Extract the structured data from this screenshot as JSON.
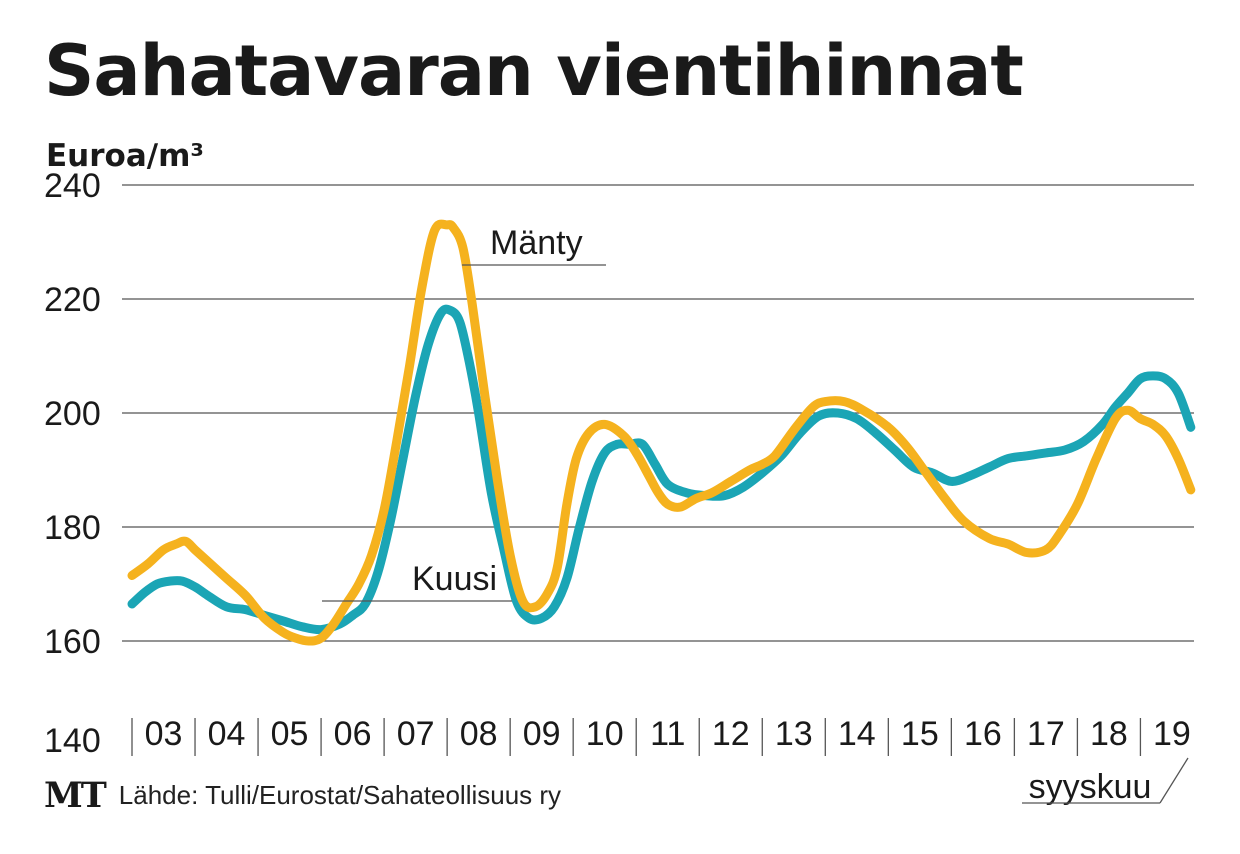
{
  "title": "Sahatavaran vientihinnat",
  "unit_label": "Euroa/m³",
  "source": "Lähde: Tulli/Eurostat/Sahateollisuus ry",
  "logo_text": "MT",
  "colors": {
    "manty": "#F5B21E",
    "kuusi": "#1BA5B5",
    "grid": "#555555",
    "text": "#1a1a1a"
  },
  "chart_data": {
    "type": "line",
    "title": "Sahatavaran vientihinnat",
    "ylabel": "Euroa/m³",
    "ylim": [
      140,
      240
    ],
    "yticks": [
      140,
      160,
      180,
      200,
      220,
      240
    ],
    "xlim": [
      0,
      16.85
    ],
    "categories": [
      "03",
      "04",
      "05",
      "06",
      "07",
      "08",
      "09",
      "10",
      "11",
      "12",
      "13",
      "14",
      "15",
      "16",
      "17",
      "18",
      "19"
    ],
    "x_end_label": "syyskuu",
    "grid": true,
    "legend": "inline labels",
    "series": [
      {
        "name": "Mänty",
        "label_anchor": [
          7.7,
          227
        ],
        "x": [
          0,
          0.25,
          0.5,
          0.7,
          0.85,
          1.0,
          1.2,
          1.5,
          1.8,
          2.1,
          2.4,
          2.6,
          2.8,
          3.0,
          3.2,
          3.4,
          3.6,
          3.8,
          4.0,
          4.2,
          4.4,
          4.6,
          4.8,
          5.0,
          5.1,
          5.25,
          5.4,
          5.6,
          5.8,
          6.0,
          6.2,
          6.4,
          6.6,
          6.75,
          6.9,
          7.05,
          7.25,
          7.5,
          7.8,
          8.0,
          8.2,
          8.35,
          8.5,
          8.7,
          8.95,
          9.2,
          9.5,
          9.8,
          10.0,
          10.2,
          10.5,
          10.8,
          11.0,
          11.3,
          11.6,
          12.0,
          12.3,
          12.6,
          12.9,
          13.2,
          13.6,
          13.9,
          14.2,
          14.5,
          14.7,
          15.0,
          15.3,
          15.6,
          15.8,
          16.0,
          16.2,
          16.4,
          16.6,
          16.8
        ],
        "values": [
          171.5,
          173.5,
          176,
          177,
          177.5,
          176,
          174,
          171,
          168,
          164,
          161.5,
          160.5,
          160,
          160.5,
          163,
          166.5,
          170,
          175,
          183,
          195,
          208,
          222,
          232,
          233,
          232.5,
          229,
          219,
          203,
          188,
          175,
          167,
          166,
          168.5,
          173,
          184,
          192,
          196.5,
          198,
          196,
          193,
          189,
          186,
          184,
          183.5,
          185,
          186,
          188,
          190,
          191,
          192.5,
          197,
          201,
          202,
          202,
          200.5,
          197.5,
          194,
          189.5,
          185,
          181,
          178,
          177,
          175.5,
          176,
          178.5,
          184,
          192,
          199,
          200.5,
          199,
          198,
          196,
          192,
          186.5
        ]
      },
      {
        "name": "Kuusi",
        "label_anchor": [
          7.6,
          174
        ],
        "x": [
          0,
          0.2,
          0.4,
          0.6,
          0.8,
          1.0,
          1.2,
          1.5,
          1.8,
          2.1,
          2.4,
          2.7,
          3.0,
          3.3,
          3.5,
          3.7,
          3.9,
          4.1,
          4.3,
          4.5,
          4.7,
          4.9,
          5.05,
          5.2,
          5.35,
          5.5,
          5.7,
          5.9,
          6.1,
          6.3,
          6.5,
          6.7,
          6.9,
          7.1,
          7.3,
          7.5,
          7.7,
          7.9,
          8.1,
          8.3,
          8.5,
          8.8,
          9.1,
          9.4,
          9.7,
          10.0,
          10.3,
          10.6,
          10.9,
          11.2,
          11.5,
          11.8,
          12.1,
          12.4,
          12.7,
          13.0,
          13.3,
          13.6,
          13.9,
          14.2,
          14.5,
          14.8,
          15.1,
          15.4,
          15.6,
          15.8,
          16.0,
          16.2,
          16.4,
          16.6,
          16.8
        ],
        "values": [
          166.5,
          168.5,
          170,
          170.5,
          170.5,
          169.5,
          168,
          166,
          165.5,
          164.5,
          163.5,
          162.5,
          162,
          163,
          164.5,
          166.5,
          172,
          181,
          192,
          203,
          212,
          217.5,
          218,
          216,
          209,
          200,
          186,
          176,
          167,
          164,
          164,
          166,
          171,
          180,
          188,
          193,
          194.5,
          194.5,
          194.5,
          191,
          187.5,
          186,
          185.5,
          185.5,
          187,
          189.5,
          192.5,
          196.5,
          199.5,
          200,
          199,
          196.5,
          193.5,
          190.5,
          189.5,
          188,
          189,
          190.5,
          192,
          192.5,
          193,
          193.5,
          195,
          198,
          201,
          203.5,
          206,
          206.5,
          206,
          203.5,
          197.5
        ]
      }
    ]
  }
}
